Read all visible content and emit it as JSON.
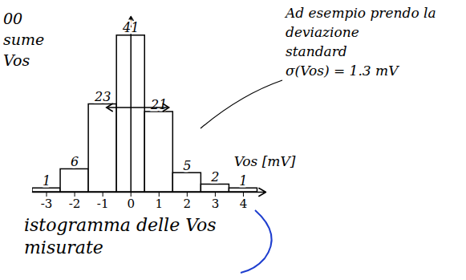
{
  "chart_data": {
    "type": "histogram",
    "bins": [
      -3.5,
      -2.5,
      -1.5,
      -0.5,
      0.5,
      1.5,
      2.5,
      3.5,
      4.5
    ],
    "values": [
      1,
      6,
      23,
      41,
      21,
      5,
      2,
      1
    ],
    "xlim": [
      -3.5,
      4.8
    ],
    "xticks": [
      -3,
      -2,
      -1,
      0,
      1,
      2,
      3,
      4
    ],
    "ylim": [
      0,
      46
    ],
    "xlabel": "Vos [mV]",
    "color": "#000000",
    "data_labels": true,
    "tick_labels": "x",
    "grid": false,
    "annotations": {
      "top_left": [
        "00",
        "sume",
        "Vos"
      ],
      "top_right": [
        "Ad esempio prendo la",
        "deviazione",
        "standard",
        "σ(Vos) = 1.3 mV"
      ],
      "caption": [
        "istogramma delle Vos",
        "misurate"
      ]
    }
  }
}
